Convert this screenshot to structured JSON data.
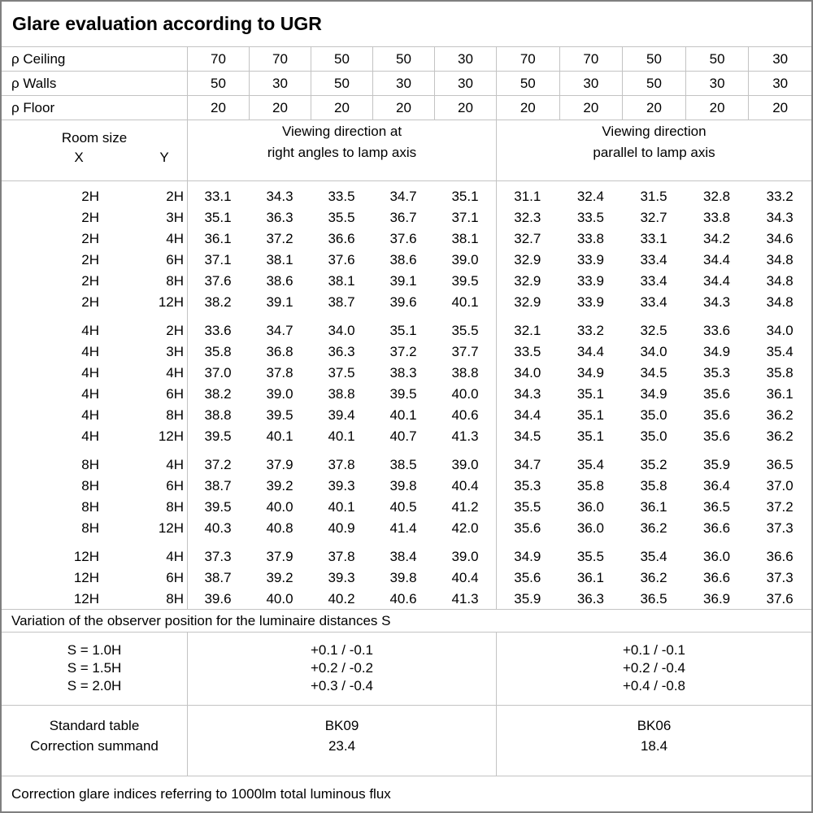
{
  "title": "Glare evaluation according to UGR",
  "reflectances": [
    {
      "label": "ρ Ceiling",
      "values": [
        "70",
        "70",
        "50",
        "50",
        "30",
        "70",
        "70",
        "50",
        "50",
        "30"
      ]
    },
    {
      "label": "ρ Walls",
      "values": [
        "50",
        "30",
        "50",
        "30",
        "30",
        "50",
        "30",
        "50",
        "30",
        "30"
      ]
    },
    {
      "label": "ρ Floor",
      "values": [
        "20",
        "20",
        "20",
        "20",
        "20",
        "20",
        "20",
        "20",
        "20",
        "20"
      ]
    }
  ],
  "header": {
    "room_size": "Room size",
    "x": "X",
    "y": "Y",
    "left_direction": [
      "Viewing direction at",
      "right angles to lamp axis"
    ],
    "right_direction": [
      "Viewing direction",
      "parallel to lamp axis"
    ]
  },
  "ugr_groups": [
    [
      {
        "x": "2H",
        "y": "2H",
        "left": [
          "33.1",
          "34.3",
          "33.5",
          "34.7",
          "35.1"
        ],
        "right": [
          "31.1",
          "32.4",
          "31.5",
          "32.8",
          "33.2"
        ]
      },
      {
        "x": "2H",
        "y": "3H",
        "left": [
          "35.1",
          "36.3",
          "35.5",
          "36.7",
          "37.1"
        ],
        "right": [
          "32.3",
          "33.5",
          "32.7",
          "33.8",
          "34.3"
        ]
      },
      {
        "x": "2H",
        "y": "4H",
        "left": [
          "36.1",
          "37.2",
          "36.6",
          "37.6",
          "38.1"
        ],
        "right": [
          "32.7",
          "33.8",
          "33.1",
          "34.2",
          "34.6"
        ]
      },
      {
        "x": "2H",
        "y": "6H",
        "left": [
          "37.1",
          "38.1",
          "37.6",
          "38.6",
          "39.0"
        ],
        "right": [
          "32.9",
          "33.9",
          "33.4",
          "34.4",
          "34.8"
        ]
      },
      {
        "x": "2H",
        "y": "8H",
        "left": [
          "37.6",
          "38.6",
          "38.1",
          "39.1",
          "39.5"
        ],
        "right": [
          "32.9",
          "33.9",
          "33.4",
          "34.4",
          "34.8"
        ]
      },
      {
        "x": "2H",
        "y": "12H",
        "left": [
          "38.2",
          "39.1",
          "38.7",
          "39.6",
          "40.1"
        ],
        "right": [
          "32.9",
          "33.9",
          "33.4",
          "34.3",
          "34.8"
        ]
      }
    ],
    [
      {
        "x": "4H",
        "y": "2H",
        "left": [
          "33.6",
          "34.7",
          "34.0",
          "35.1",
          "35.5"
        ],
        "right": [
          "32.1",
          "33.2",
          "32.5",
          "33.6",
          "34.0"
        ]
      },
      {
        "x": "4H",
        "y": "3H",
        "left": [
          "35.8",
          "36.8",
          "36.3",
          "37.2",
          "37.7"
        ],
        "right": [
          "33.5",
          "34.4",
          "34.0",
          "34.9",
          "35.4"
        ]
      },
      {
        "x": "4H",
        "y": "4H",
        "left": [
          "37.0",
          "37.8",
          "37.5",
          "38.3",
          "38.8"
        ],
        "right": [
          "34.0",
          "34.9",
          "34.5",
          "35.3",
          "35.8"
        ]
      },
      {
        "x": "4H",
        "y": "6H",
        "left": [
          "38.2",
          "39.0",
          "38.8",
          "39.5",
          "40.0"
        ],
        "right": [
          "34.3",
          "35.1",
          "34.9",
          "35.6",
          "36.1"
        ]
      },
      {
        "x": "4H",
        "y": "8H",
        "left": [
          "38.8",
          "39.5",
          "39.4",
          "40.1",
          "40.6"
        ],
        "right": [
          "34.4",
          "35.1",
          "35.0",
          "35.6",
          "36.2"
        ]
      },
      {
        "x": "4H",
        "y": "12H",
        "left": [
          "39.5",
          "40.1",
          "40.1",
          "40.7",
          "41.3"
        ],
        "right": [
          "34.5",
          "35.1",
          "35.0",
          "35.6",
          "36.2"
        ]
      }
    ],
    [
      {
        "x": "8H",
        "y": "4H",
        "left": [
          "37.2",
          "37.9",
          "37.8",
          "38.5",
          "39.0"
        ],
        "right": [
          "34.7",
          "35.4",
          "35.2",
          "35.9",
          "36.5"
        ]
      },
      {
        "x": "8H",
        "y": "6H",
        "left": [
          "38.7",
          "39.2",
          "39.3",
          "39.8",
          "40.4"
        ],
        "right": [
          "35.3",
          "35.8",
          "35.8",
          "36.4",
          "37.0"
        ]
      },
      {
        "x": "8H",
        "y": "8H",
        "left": [
          "39.5",
          "40.0",
          "40.1",
          "40.5",
          "41.2"
        ],
        "right": [
          "35.5",
          "36.0",
          "36.1",
          "36.5",
          "37.2"
        ]
      },
      {
        "x": "8H",
        "y": "12H",
        "left": [
          "40.3",
          "40.8",
          "40.9",
          "41.4",
          "42.0"
        ],
        "right": [
          "35.6",
          "36.0",
          "36.2",
          "36.6",
          "37.3"
        ]
      }
    ],
    [
      {
        "x": "12H",
        "y": "4H",
        "left": [
          "37.3",
          "37.9",
          "37.8",
          "38.4",
          "39.0"
        ],
        "right": [
          "34.9",
          "35.5",
          "35.4",
          "36.0",
          "36.6"
        ]
      },
      {
        "x": "12H",
        "y": "6H",
        "left": [
          "38.7",
          "39.2",
          "39.3",
          "39.8",
          "40.4"
        ],
        "right": [
          "35.6",
          "36.1",
          "36.2",
          "36.6",
          "37.3"
        ]
      },
      {
        "x": "12H",
        "y": "8H",
        "left": [
          "39.6",
          "40.0",
          "40.2",
          "40.6",
          "41.3"
        ],
        "right": [
          "35.9",
          "36.3",
          "36.5",
          "36.9",
          "37.6"
        ]
      }
    ]
  ],
  "variation_note": "Variation of the observer position for the luminaire distances S",
  "variation": {
    "labels": [
      "S = 1.0H",
      "S = 1.5H",
      "S = 2.0H"
    ],
    "left": [
      "+0.1 / -0.1",
      "+0.2 / -0.2",
      "+0.3 / -0.4"
    ],
    "right": [
      "+0.1 / -0.1",
      "+0.2 / -0.4",
      "+0.4 / -0.8"
    ]
  },
  "summary": {
    "labels": [
      "Standard table",
      "Correction summand"
    ],
    "left": [
      "BK09",
      "23.4"
    ],
    "right": [
      "BK06",
      "18.4"
    ]
  },
  "footer": "Correction glare indices referring to 1000lm total luminous flux",
  "colors": {
    "grid_line": "#c3c3c3",
    "outer_border": "#7f7f7f",
    "text": "#000000",
    "background": "#ffffff"
  }
}
